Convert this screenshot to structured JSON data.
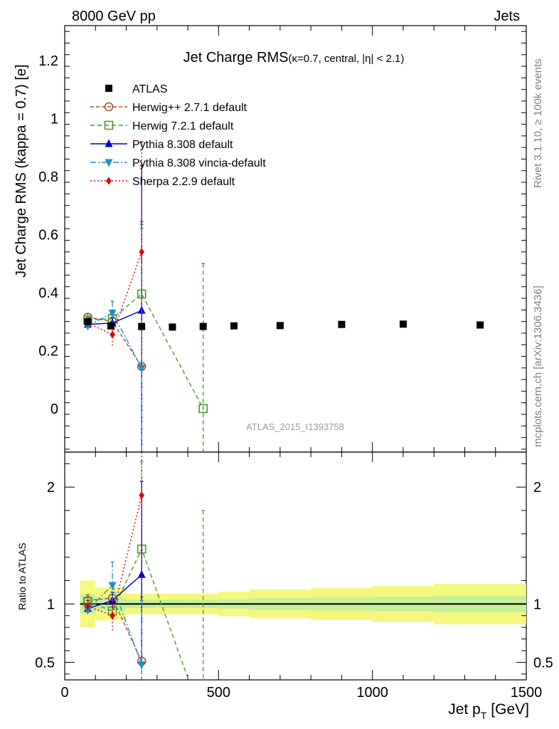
{
  "header": {
    "left": "8000 GeV pp",
    "right": "Jets"
  },
  "side_labels": {
    "rivet": "Rivet 3.1.10, ≥ 100k events",
    "mcplots": "mcplots.cern.ch [arXiv:1306.3436]"
  },
  "title": {
    "main": "Jet Charge RMS",
    "sub": "(κ=0.7, central, |η| < 2.1)"
  },
  "analysis_id": "ATLAS_2015_I1393758",
  "chart_data": {
    "type": "scatter",
    "xlabel_main": "Jet p",
    "xlabel_sub": "T",
    "xlabel_unit": "[GeV]",
    "ylabel": "Jet Charge RMS (kappa = 0.7) [e]",
    "ratio_ylabel": "Ratio to ATLAS",
    "xlim": [
      0,
      1500
    ],
    "ylim": [
      -0.15,
      1.32
    ],
    "ratio_ylim": [
      0.35,
      2.3
    ],
    "x_ticks": [
      0,
      500,
      1000,
      1500
    ],
    "x_tick_labels": [
      "0",
      "500",
      "1000",
      "1500"
    ],
    "y_ticks": [
      0,
      0.2,
      0.4,
      0.6,
      0.8,
      1,
      1.2
    ],
    "y_tick_labels": [
      "0",
      "0.2",
      "0.4",
      "0.6",
      "0.8",
      "1",
      "1.2"
    ],
    "ratio_ticks": [
      0.5,
      1,
      2
    ],
    "ratio_tick_labels": [
      "0.5",
      "1",
      "2"
    ],
    "data": {
      "name": "ATLAS",
      "x": [
        75,
        150,
        250,
        350,
        450,
        550,
        700,
        900,
        1100,
        1350
      ],
      "xlow": [
        50,
        100,
        200,
        300,
        400,
        500,
        600,
        800,
        1000,
        1200
      ],
      "xhigh": [
        100,
        200,
        300,
        400,
        500,
        600,
        800,
        1000,
        1200,
        1500
      ],
      "y": [
        0.3,
        0.285,
        0.283,
        0.281,
        0.283,
        0.285,
        0.286,
        0.29,
        0.291,
        0.288
      ],
      "band": [
        0.06,
        0.04,
        0.025,
        0.025,
        0.025,
        0.03,
        0.035,
        0.04,
        0.045,
        0.05
      ]
    },
    "series": [
      {
        "name": "Herwig++ 2.7.1 default",
        "color": "#a0522d",
        "marker": "circle-open",
        "dash": "5,3",
        "x": [
          75,
          155,
          250
        ],
        "y": [
          0.315,
          0.3,
          0.145
        ],
        "err": [
          0.012,
          0.03,
          0.5
        ],
        "ratio": [
          1.03,
          1.05,
          0.51
        ],
        "ratio_err": [
          0.05,
          0.1,
          0.55
        ]
      },
      {
        "name": "Herwig 7.2.1 default",
        "color": "#4c9a2a",
        "marker": "square-open",
        "dash": "6,4",
        "x": [
          75,
          155,
          250,
          450
        ],
        "y": [
          0.305,
          0.31,
          0.395,
          0.0
        ],
        "err": [
          0.01,
          0.025,
          0.24,
          0.5
        ],
        "ratio": [
          1.02,
          0.94,
          1.47,
          0.0
        ],
        "ratio_err": [
          0.04,
          0.09,
          0.75,
          1.8
        ]
      },
      {
        "name": "Pythia 8.308 default",
        "color": "#0000cc",
        "marker": "triangle-up",
        "dash": "",
        "x": [
          75,
          155,
          250
        ],
        "y": [
          0.29,
          0.295,
          0.338
        ],
        "err": [
          0.01,
          0.02,
          0.5
        ],
        "ratio": [
          0.96,
          1.03,
          1.25
        ],
        "ratio_err": [
          0.04,
          0.07,
          0.8
        ]
      },
      {
        "name": "Pythia 8.308 vincia-default",
        "color": "#1e90c8",
        "marker": "triangle-down",
        "dash": "8,3,2,3",
        "x": [
          75,
          155,
          250
        ],
        "y": [
          0.285,
          0.33,
          0.14
        ],
        "err": [
          0.01,
          0.04,
          0.48
        ],
        "ratio": [
          0.95,
          1.16,
          0.48
        ],
        "ratio_err": [
          0.04,
          0.2,
          0.55
        ]
      },
      {
        "name": "Sherpa 2.2.9 default",
        "color": "#e00000",
        "marker": "diamond",
        "dash": "2,3",
        "x": [
          75,
          155,
          250
        ],
        "y": [
          0.295,
          0.255,
          0.54
        ],
        "err": [
          0.015,
          0.04,
          0.38
        ],
        "ratio": [
          0.98,
          0.9,
          1.93
        ],
        "ratio_err": [
          0.05,
          0.13,
          0.75
        ]
      }
    ]
  }
}
